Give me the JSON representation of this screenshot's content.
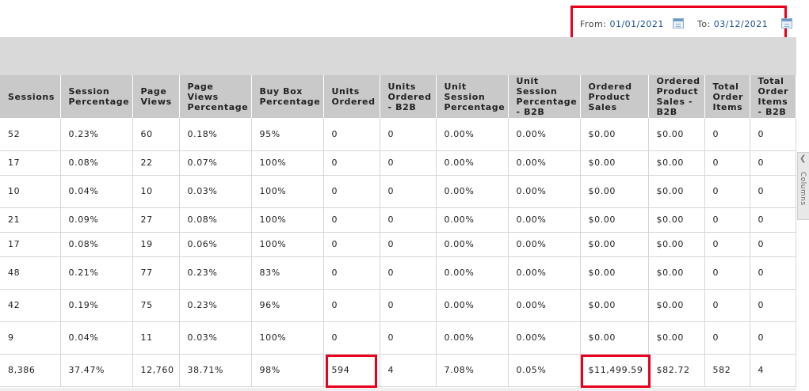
{
  "date_range": {
    "from_label": "From:",
    "from_value": "01/01/2021",
    "to_label": "To:",
    "to_value": "03/12/2021"
  },
  "table": {
    "columns": [
      "Sessions",
      "Session Percentage",
      "Page Views",
      "Page Views Percentage",
      "Buy Box Percentage",
      "Units Ordered",
      "Units Ordered - B2B",
      "Unit Session Percentage",
      "Unit Session Percentage - B2B",
      "Ordered Product Sales",
      "Ordered Product Sales - B2B",
      "Total Order Items",
      "Total Order Items - B2B"
    ],
    "rows": [
      [
        "52",
        "0.23%",
        "60",
        "0.18%",
        "95%",
        "0",
        "0",
        "0.00%",
        "0.00%",
        "$0.00",
        "$0.00",
        "0",
        "0"
      ],
      [
        "17",
        "0.08%",
        "22",
        "0.07%",
        "100%",
        "0",
        "0",
        "0.00%",
        "0.00%",
        "$0.00",
        "$0.00",
        "0",
        "0"
      ],
      [
        "10",
        "0.04%",
        "10",
        "0.03%",
        "100%",
        "0",
        "0",
        "0.00%",
        "0.00%",
        "$0.00",
        "$0.00",
        "0",
        "0"
      ],
      [
        "21",
        "0.09%",
        "27",
        "0.08%",
        "100%",
        "0",
        "0",
        "0.00%",
        "0.00%",
        "$0.00",
        "$0.00",
        "0",
        "0"
      ],
      [
        "17",
        "0.08%",
        "19",
        "0.06%",
        "100%",
        "0",
        "0",
        "0.00%",
        "0.00%",
        "$0.00",
        "$0.00",
        "0",
        "0"
      ],
      [
        "48",
        "0.21%",
        "77",
        "0.23%",
        "83%",
        "0",
        "0",
        "0.00%",
        "0.00%",
        "$0.00",
        "$0.00",
        "0",
        "0"
      ],
      [
        "42",
        "0.19%",
        "75",
        "0.23%",
        "96%",
        "0",
        "0",
        "0.00%",
        "0.00%",
        "$0.00",
        "$0.00",
        "0",
        "0"
      ],
      [
        "9",
        "0.04%",
        "11",
        "0.03%",
        "100%",
        "0",
        "0",
        "0.00%",
        "0.00%",
        "$0.00",
        "$0.00",
        "0",
        "0"
      ],
      [
        "8,386",
        "37.47%",
        "12,760",
        "38.71%",
        "98%",
        "594",
        "4",
        "7.08%",
        "0.05%",
        "$11,499.59",
        "$82.72",
        "582",
        "4"
      ]
    ]
  },
  "side_panel": {
    "columns_label": "Columns",
    "chevron_icon": "chevron-left-icon"
  },
  "colors": {
    "highlight": "#e8001c",
    "header_bg": "#c9c9c9",
    "band_bg": "#d9d9d9",
    "date_value": "#1a4f8f"
  }
}
